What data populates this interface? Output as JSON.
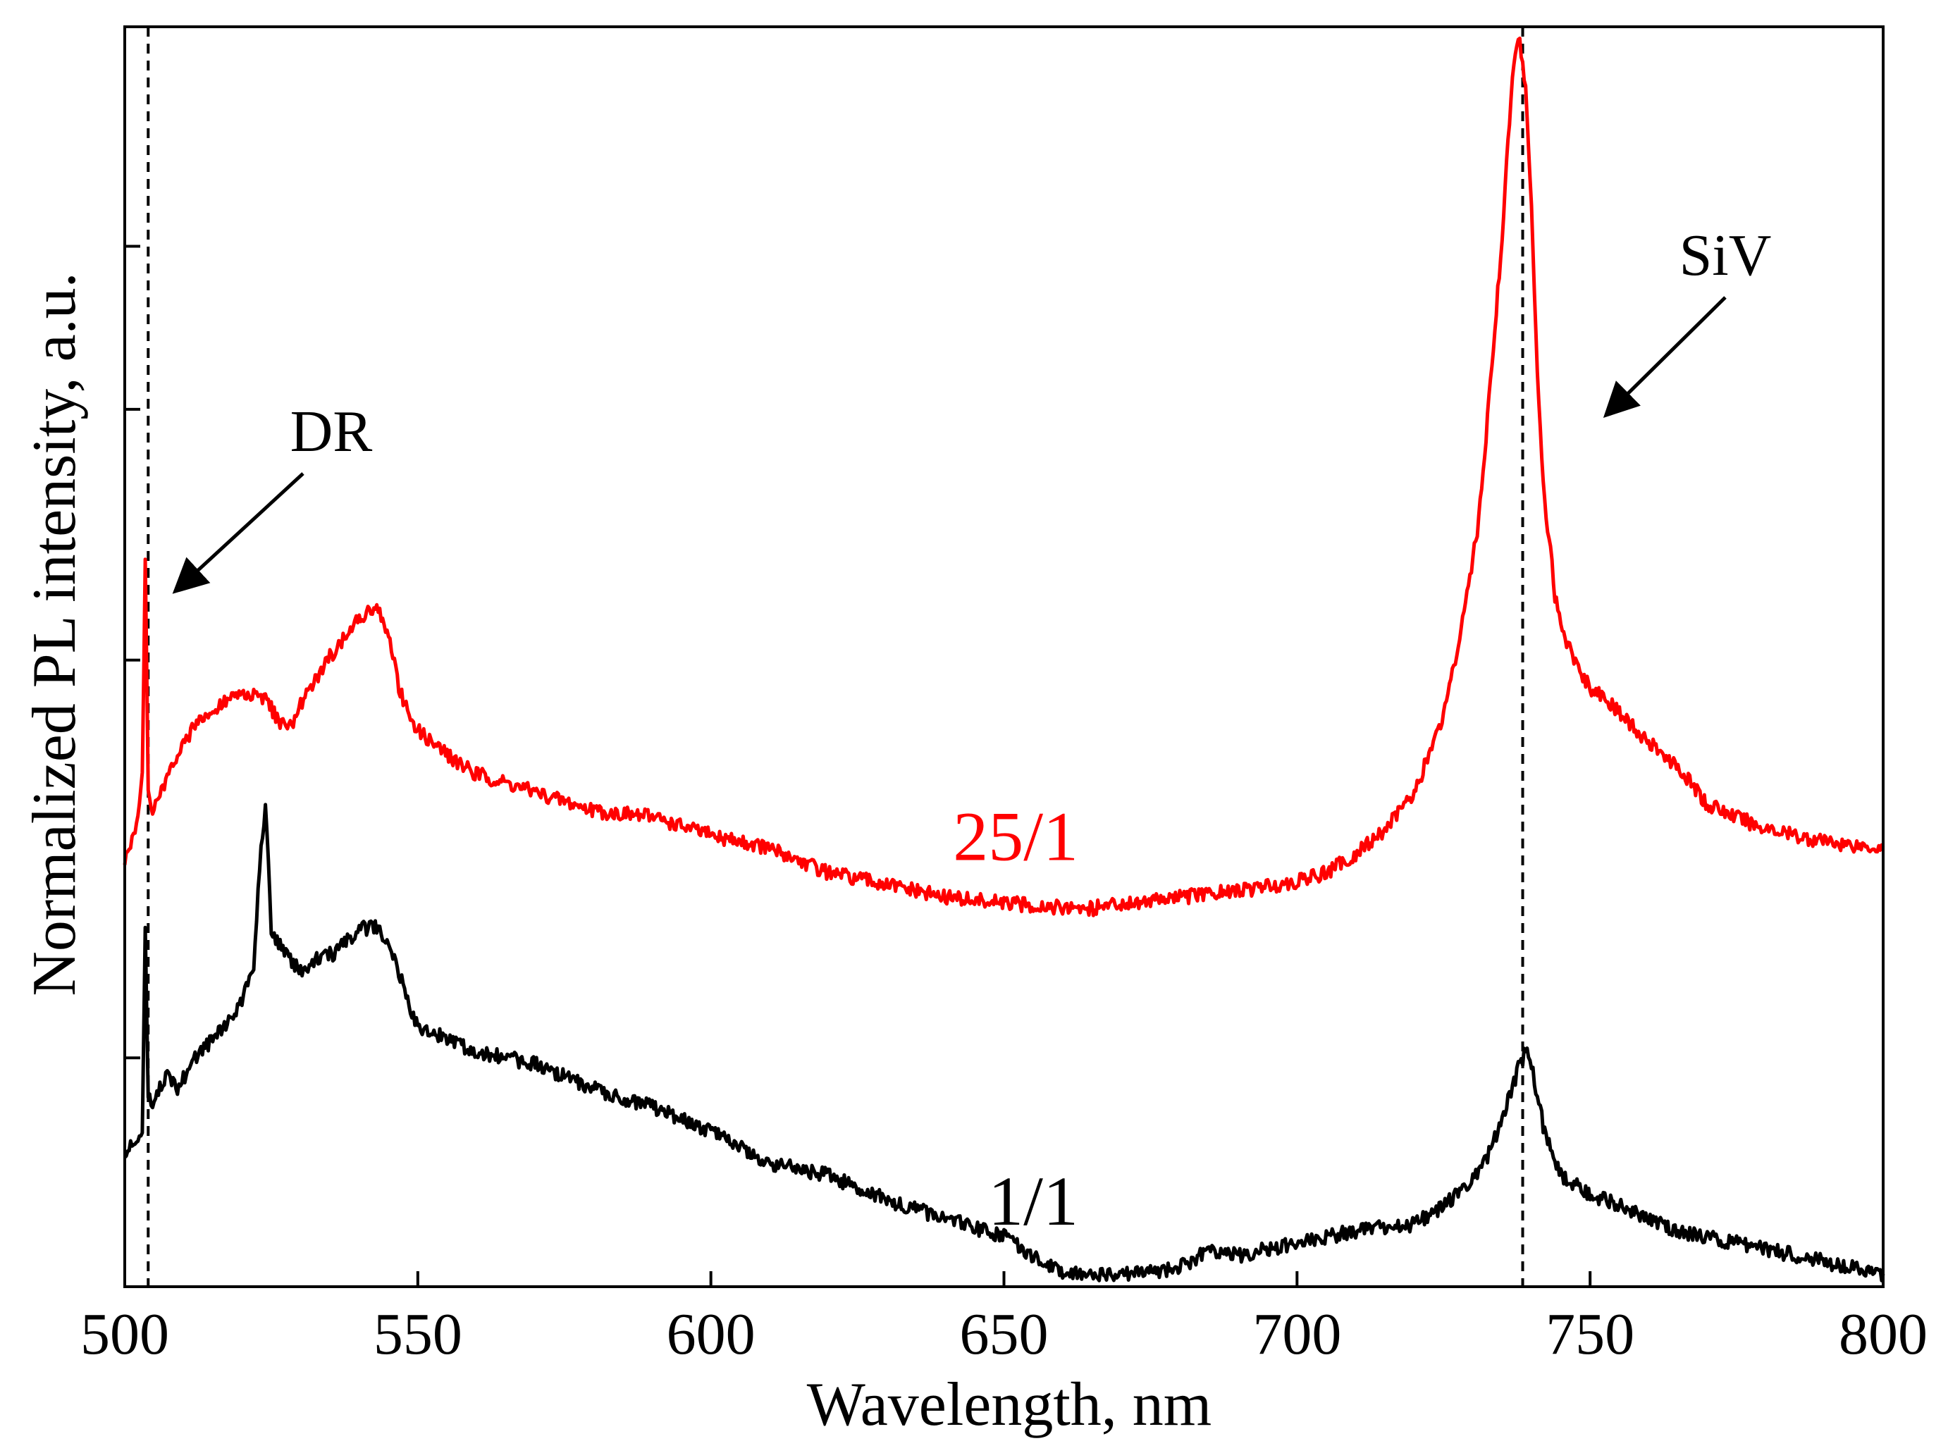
{
  "chart_data": {
    "type": "line",
    "title": "",
    "xlabel": "Wavelength, nm",
    "ylabel": "Normalized PL intensity, a.u.",
    "xlim": [
      500,
      800
    ],
    "ylim": [
      0,
      1
    ],
    "x_ticks": [
      500,
      550,
      600,
      650,
      700,
      750,
      800
    ],
    "y_ticks": [
      0.175,
      0.497,
      0.7,
      0.832
    ],
    "y_tick_labels_shown": false,
    "grid": false,
    "legend": "none",
    "colors": {
      "red": "#ff0000",
      "black": "#000000",
      "axis": "#000000"
    },
    "series": [
      {
        "name": "25/1",
        "label": "25/1",
        "color": "#ff0000",
        "x": [
          500,
          502,
          503,
          503.5,
          504,
          504.5,
          505,
          507,
          510,
          513,
          516,
          520,
          524,
          526,
          528,
          530,
          535,
          540,
          543,
          545,
          547,
          550,
          555,
          560,
          570,
          580,
          590,
          600,
          610,
          620,
          630,
          640,
          650,
          660,
          665,
          670,
          680,
          690,
          700,
          705,
          710,
          715,
          720,
          725,
          728,
          731,
          733,
          735,
          736,
          737,
          738,
          739,
          740,
          741,
          742,
          744,
          746,
          748,
          750,
          755,
          760,
          765,
          770,
          780,
          790,
          800
        ],
        "y": [
          0.335,
          0.36,
          0.405,
          0.58,
          0.39,
          0.38,
          0.375,
          0.4,
          0.43,
          0.45,
          0.46,
          0.47,
          0.465,
          0.45,
          0.44,
          0.46,
          0.5,
          0.53,
          0.54,
          0.52,
          0.47,
          0.44,
          0.42,
          0.405,
          0.39,
          0.375,
          0.37,
          0.355,
          0.345,
          0.325,
          0.315,
          0.305,
          0.3,
          0.297,
          0.296,
          0.3,
          0.305,
          0.31,
          0.318,
          0.325,
          0.34,
          0.36,
          0.39,
          0.45,
          0.52,
          0.61,
          0.72,
          0.84,
          0.92,
          0.98,
          1.0,
          0.96,
          0.86,
          0.73,
          0.64,
          0.55,
          0.51,
          0.49,
          0.475,
          0.455,
          0.43,
          0.41,
          0.38,
          0.36,
          0.35,
          0.345
        ]
      },
      {
        "name": "1/1",
        "label": "1/1",
        "color": "#000000",
        "x": [
          500,
          502,
          503,
          503.5,
          504,
          505,
          507,
          509,
          512,
          516,
          520,
          522,
          523,
          524,
          525,
          527,
          530,
          533,
          536,
          540,
          543,
          545,
          547,
          550,
          555,
          560,
          565,
          570,
          575,
          580,
          590,
          600,
          610,
          620,
          630,
          640,
          650,
          660,
          670,
          680,
          685,
          690,
          700,
          710,
          720,
          725,
          730,
          733,
          736,
          738,
          739,
          740,
          742,
          745,
          750,
          755,
          760,
          765,
          770,
          780,
          790,
          800
        ],
        "y": [
          0.1,
          0.105,
          0.12,
          0.28,
          0.14,
          0.14,
          0.16,
          0.15,
          0.175,
          0.195,
          0.22,
          0.25,
          0.33,
          0.38,
          0.28,
          0.26,
          0.245,
          0.255,
          0.26,
          0.28,
          0.28,
          0.27,
          0.24,
          0.2,
          0.19,
          0.18,
          0.175,
          0.17,
          0.16,
          0.15,
          0.135,
          0.115,
          0.09,
          0.08,
          0.06,
          0.045,
          0.03,
          0.0,
          0.0,
          0.005,
          0.02,
          0.015,
          0.025,
          0.035,
          0.04,
          0.055,
          0.075,
          0.1,
          0.14,
          0.17,
          0.18,
          0.17,
          0.12,
          0.08,
          0.065,
          0.055,
          0.045,
          0.035,
          0.03,
          0.02,
          0.01,
          0.0
        ]
      }
    ],
    "reference_lines": [
      {
        "x": 504,
        "style": "dashed",
        "color": "#000000"
      },
      {
        "x": 738.5,
        "style": "dashed",
        "color": "#000000"
      }
    ],
    "annotations": [
      {
        "text": "DR",
        "points_to_x": 504,
        "points_to_y": 0.57
      },
      {
        "text": "SiV",
        "points_to_x": 749,
        "points_to_y": 0.86
      }
    ]
  }
}
